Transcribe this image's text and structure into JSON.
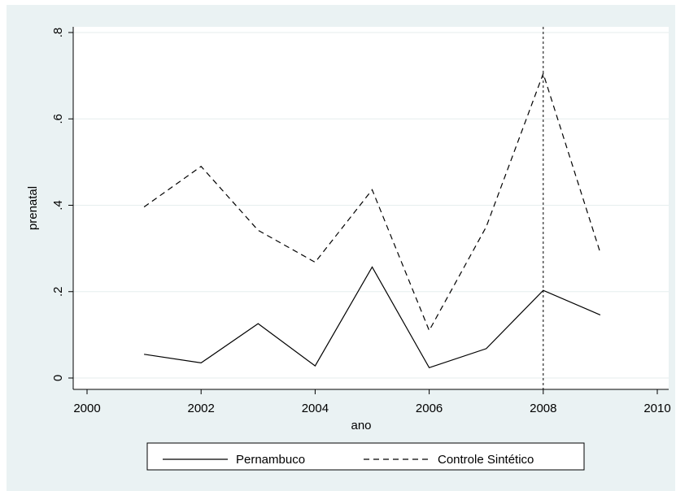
{
  "chart_data": {
    "type": "line",
    "title": "",
    "xlabel": "ano",
    "ylabel": "prenatal",
    "xlim": [
      2000,
      2010
    ],
    "ylim": [
      0,
      0.8
    ],
    "xticks": [
      2000,
      2002,
      2004,
      2006,
      2008,
      2010
    ],
    "xtick_labels": [
      "2000",
      "2002",
      "2004",
      "2006",
      "2008",
      "2010"
    ],
    "yticks": [
      0,
      0.2,
      0.4,
      0.6,
      0.8
    ],
    "ytick_labels": [
      "0",
      ".2",
      ".4",
      ".6",
      ".8"
    ],
    "x": [
      2001,
      2002,
      2003,
      2004,
      2005,
      2006,
      2007,
      2008,
      2009
    ],
    "series": [
      {
        "name": "Pernambuco",
        "style": "solid",
        "values": [
          0.055,
          0.035,
          0.126,
          0.028,
          0.257,
          0.024,
          0.068,
          0.203,
          0.146
        ]
      },
      {
        "name": "Controle Sintético",
        "style": "dashed",
        "values": [
          0.396,
          0.49,
          0.342,
          0.268,
          0.436,
          0.11,
          0.35,
          0.705,
          0.29
        ]
      }
    ],
    "vline": 2008,
    "grid": true,
    "legend_position": "bottom"
  }
}
